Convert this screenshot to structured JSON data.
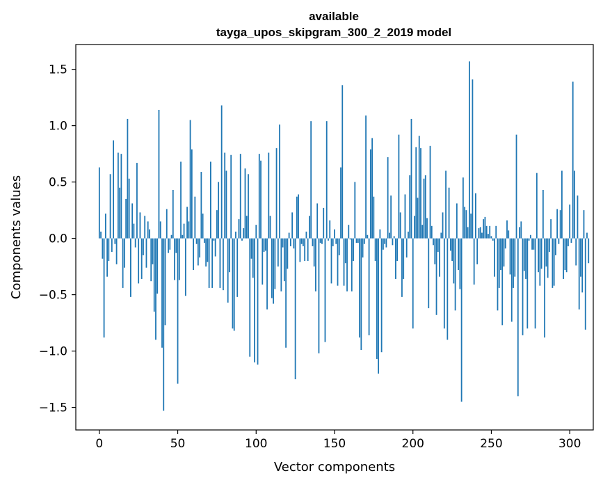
{
  "chart_data": {
    "type": "bar",
    "title_line1": "available",
    "title_line2": "tayga_upos_skipgram_300_2_2019 model",
    "xlabel": "Vector components",
    "ylabel": "Components values",
    "xlim": [
      -15,
      315
    ],
    "ylim": [
      -1.7,
      1.72
    ],
    "xticks": [
      0,
      50,
      100,
      150,
      200,
      250,
      300
    ],
    "xtick_labels": [
      "0",
      "50",
      "100",
      "150",
      "200",
      "250",
      "300"
    ],
    "yticks": [
      -1.5,
      -1.0,
      -0.5,
      0.0,
      0.5,
      1.0,
      1.5
    ],
    "ytick_labels": [
      "−1.5",
      "−1.0",
      "−0.5",
      "0.0",
      "0.5",
      "1.0",
      "1.5"
    ],
    "bar_color": "#1f77b4",
    "x_start": 0,
    "values": [
      0.63,
      0.06,
      -0.18,
      -0.88,
      0.22,
      -0.34,
      -0.2,
      0.57,
      -0.12,
      0.87,
      -0.05,
      -0.23,
      0.76,
      0.45,
      0.75,
      -0.44,
      -0.26,
      0.35,
      1.06,
      0.53,
      -0.52,
      0.31,
      0.13,
      -0.08,
      0.67,
      -0.4,
      0.23,
      -0.36,
      -0.15,
      0.2,
      -0.26,
      0.15,
      0.08,
      -0.38,
      -0.23,
      -0.65,
      -0.9,
      -0.49,
      1.14,
      0.15,
      -0.97,
      -1.53,
      -0.77,
      0.26,
      -0.13,
      -0.1,
      0.03,
      0.43,
      -0.37,
      -0.13,
      -1.29,
      -0.37,
      0.68,
      0.03,
      0.13,
      -0.51,
      0.28,
      0.15,
      1.05,
      0.79,
      -0.28,
      0.37,
      -0.05,
      -0.24,
      -0.17,
      0.59,
      0.22,
      -0.04,
      -0.25,
      -0.21,
      -0.44,
      0.68,
      -0.44,
      -0.02,
      -0.16,
      0.25,
      0.5,
      -0.44,
      1.18,
      -0.46,
      0.76,
      0.6,
      -0.57,
      -0.3,
      0.74,
      -0.8,
      -0.82,
      0.06,
      -0.52,
      0.17,
      0.75,
      -0.02,
      0.09,
      0.62,
      0.2,
      0.57,
      -1.05,
      -0.18,
      -0.35,
      -1.1,
      0.12,
      -1.12,
      0.75,
      0.69,
      -0.41,
      -0.12,
      -0.11,
      -0.63,
      0.76,
      0.2,
      -0.53,
      -0.58,
      -0.45,
      0.8,
      -0.25,
      1.01,
      -0.47,
      -0.08,
      -0.38,
      -0.97,
      -0.27,
      0.05,
      -0.07,
      0.23,
      -0.09,
      -1.25,
      0.37,
      0.39,
      -0.21,
      -0.05,
      -0.07,
      -0.2,
      0.06,
      -0.2,
      0.2,
      1.04,
      -0.07,
      -0.25,
      -0.47,
      0.31,
      -1.02,
      -0.04,
      -0.05,
      0.27,
      -0.92,
      1.04,
      -0.02,
      0.16,
      -0.4,
      -0.07,
      0.08,
      -0.05,
      -0.42,
      -0.15,
      0.63,
      1.36,
      -0.42,
      -0.22,
      -0.47,
      0.12,
      -0.01,
      -0.47,
      -0.2,
      0.5,
      -0.04,
      -0.04,
      -0.88,
      -0.99,
      -0.17,
      -0.05,
      1.09,
      0.03,
      -0.86,
      0.79,
      0.89,
      0.37,
      -0.2,
      -1.07,
      -1.2,
      0.08,
      -1.01,
      -0.1,
      -0.05,
      -0.08,
      0.72,
      0.05,
      0.38,
      -0.06,
      0.02,
      -0.36,
      -0.2,
      0.92,
      0.23,
      -0.52,
      -0.36,
      0.39,
      -0.17,
      0.06,
      0.56,
      1.06,
      -0.8,
      0.2,
      0.81,
      0.36,
      0.91,
      0.8,
      0.12,
      0.53,
      0.56,
      0.18,
      -0.62,
      0.82,
      0.11,
      -0.06,
      -0.23,
      -0.68,
      -0.12,
      -0.34,
      0.05,
      0.23,
      -0.8,
      0.6,
      -0.9,
      0.45,
      -0.11,
      -0.2,
      -0.4,
      -0.64,
      0.31,
      -0.28,
      -0.45,
      -1.45,
      0.54,
      0.28,
      0.25,
      0.1,
      1.57,
      0.22,
      1.41,
      -0.41,
      0.4,
      -0.23,
      0.09,
      0.1,
      0.05,
      0.17,
      0.19,
      0.11,
      0.04,
      0.11,
      0.02,
      -0.02,
      -0.34,
      0.11,
      -0.64,
      -0.44,
      -0.28,
      -0.77,
      -0.25,
      -0.09,
      0.16,
      0.07,
      -0.32,
      -0.74,
      -0.44,
      -0.34,
      0.92,
      -1.4,
      0.1,
      0.15,
      -0.86,
      -0.29,
      -0.36,
      -0.8,
      -0.02,
      0.03,
      -0.1,
      -0.1,
      -0.8,
      0.58,
      -0.3,
      -0.42,
      -0.27,
      0.43,
      -0.88,
      -0.25,
      -0.35,
      -0.12,
      0.17,
      -0.44,
      -0.42,
      -0.15,
      0.26,
      -0.05,
      0.25,
      0.6,
      -0.36,
      -0.28,
      -0.3,
      -0.07,
      0.3,
      -0.04,
      1.39,
      0.6,
      -0.24,
      0.38,
      -0.63,
      -0.34,
      -0.48,
      0.25,
      -0.81,
      0.05,
      -0.22
    ]
  }
}
